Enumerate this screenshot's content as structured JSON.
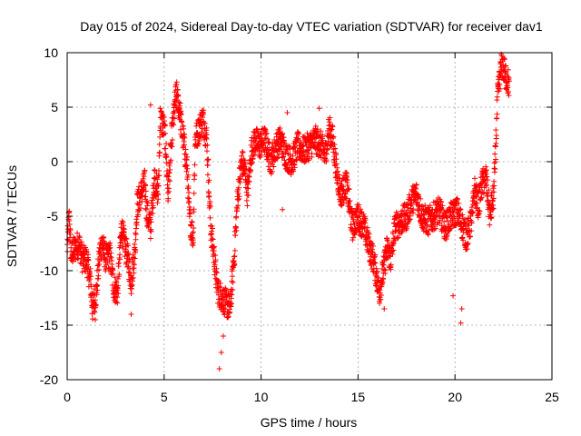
{
  "chart_data": {
    "type": "scatter",
    "title": "Day 015 of 2024, Sidereal Day-to-day VTEC variation (SDTVAR) for receiver dav1",
    "xlabel": "GPS time / hours",
    "ylabel": "SDTVAR / TECUs",
    "xlim": [
      0,
      25
    ],
    "ylim": [
      -20,
      10
    ],
    "x_ticks": [
      0,
      5,
      10,
      15,
      20,
      25
    ],
    "y_ticks": [
      -20,
      -15,
      -10,
      -5,
      0,
      5,
      10
    ],
    "grid": true,
    "marker": "+",
    "color": "#ff0000",
    "series": [
      {
        "name": "SDTVAR",
        "anchors": [
          [
            0.0,
            -8
          ],
          [
            0.1,
            -5
          ],
          [
            0.2,
            -8.5
          ],
          [
            0.4,
            -8
          ],
          [
            0.6,
            -7.5
          ],
          [
            0.8,
            -9
          ],
          [
            1.0,
            -9
          ],
          [
            1.2,
            -11
          ],
          [
            1.3,
            -13.5
          ],
          [
            1.5,
            -12
          ],
          [
            1.6,
            -10
          ],
          [
            1.7,
            -8
          ],
          [
            1.8,
            -7.5
          ],
          [
            2.0,
            -9
          ],
          [
            2.2,
            -8.5
          ],
          [
            2.4,
            -11.5
          ],
          [
            2.6,
            -12
          ],
          [
            2.8,
            -6
          ],
          [
            3.0,
            -8
          ],
          [
            3.1,
            -8.5
          ],
          [
            3.3,
            -11
          ],
          [
            3.5,
            -8
          ],
          [
            3.6,
            -4
          ],
          [
            3.8,
            -3
          ],
          [
            4.0,
            -2
          ],
          [
            4.1,
            -4.5
          ],
          [
            4.3,
            -6
          ],
          [
            4.5,
            -1.5
          ],
          [
            4.7,
            -3
          ],
          [
            4.8,
            4
          ],
          [
            5.0,
            3
          ],
          [
            5.1,
            1
          ],
          [
            5.2,
            -3
          ],
          [
            5.4,
            2.5
          ],
          [
            5.6,
            6
          ],
          [
            5.8,
            5
          ],
          [
            5.9,
            3
          ],
          [
            6.0,
            2
          ],
          [
            6.2,
            -1
          ],
          [
            6.3,
            -5
          ],
          [
            6.5,
            -7
          ],
          [
            6.6,
            2
          ],
          [
            6.8,
            3
          ],
          [
            7.0,
            4
          ],
          [
            7.2,
            2
          ],
          [
            7.4,
            -6
          ],
          [
            7.6,
            -9
          ],
          [
            7.7,
            -11
          ],
          [
            7.8,
            -12
          ],
          [
            8.0,
            -12.5
          ],
          [
            8.2,
            -13
          ],
          [
            8.4,
            -13.5
          ],
          [
            8.6,
            -9
          ],
          [
            8.8,
            -3
          ],
          [
            9.0,
            0
          ],
          [
            9.2,
            -1
          ],
          [
            9.3,
            -3
          ],
          [
            9.5,
            1
          ],
          [
            9.7,
            2
          ],
          [
            9.9,
            1.5
          ],
          [
            10.2,
            2
          ],
          [
            10.5,
            0
          ],
          [
            10.8,
            1.5
          ],
          [
            11.0,
            2
          ],
          [
            11.3,
            0.5
          ],
          [
            11.6,
            0
          ],
          [
            11.9,
            1.5
          ],
          [
            12.2,
            1
          ],
          [
            12.5,
            1.5
          ],
          [
            12.8,
            2
          ],
          [
            13.1,
            1.5
          ],
          [
            13.3,
            0.5
          ],
          [
            13.5,
            3
          ],
          [
            13.7,
            2
          ],
          [
            13.9,
            -1
          ],
          [
            14.1,
            -3
          ],
          [
            14.4,
            -2
          ],
          [
            14.7,
            -6
          ],
          [
            15.0,
            -5
          ],
          [
            15.3,
            -6
          ],
          [
            15.6,
            -8
          ],
          [
            15.8,
            -9
          ],
          [
            16.0,
            -11
          ],
          [
            16.1,
            -12
          ],
          [
            16.3,
            -10
          ],
          [
            16.5,
            -8
          ],
          [
            16.7,
            -9
          ],
          [
            16.9,
            -6
          ],
          [
            17.2,
            -5.5
          ],
          [
            17.5,
            -5
          ],
          [
            17.8,
            -3.5
          ],
          [
            18.0,
            -3
          ],
          [
            18.3,
            -5
          ],
          [
            18.6,
            -5.5
          ],
          [
            18.9,
            -5
          ],
          [
            19.2,
            -4.5
          ],
          [
            19.5,
            -6
          ],
          [
            19.8,
            -5
          ],
          [
            20.1,
            -4.5
          ],
          [
            20.4,
            -6
          ],
          [
            20.6,
            -7
          ],
          [
            20.9,
            -5
          ],
          [
            21.0,
            -2.5
          ],
          [
            21.2,
            -4
          ],
          [
            21.4,
            -2
          ],
          [
            21.6,
            -1.5
          ],
          [
            21.8,
            -5
          ],
          [
            22.0,
            -3
          ],
          [
            22.2,
            6
          ],
          [
            22.4,
            9
          ],
          [
            22.6,
            8
          ],
          [
            22.8,
            7
          ]
        ],
        "outliers": [
          [
            7.85,
            -19
          ],
          [
            7.95,
            -17.5
          ],
          [
            8.05,
            -16
          ],
          [
            1.45,
            -14.5
          ],
          [
            3.3,
            -14
          ],
          [
            20.3,
            -14.8
          ],
          [
            20.35,
            -13.5
          ],
          [
            19.9,
            -12.3
          ],
          [
            16.35,
            -13.5
          ],
          [
            13.0,
            4.9
          ],
          [
            11.1,
            -4.4
          ],
          [
            11.35,
            4.5
          ],
          [
            4.3,
            5.2
          ],
          [
            5.65,
            7.3
          ]
        ]
      }
    ]
  }
}
